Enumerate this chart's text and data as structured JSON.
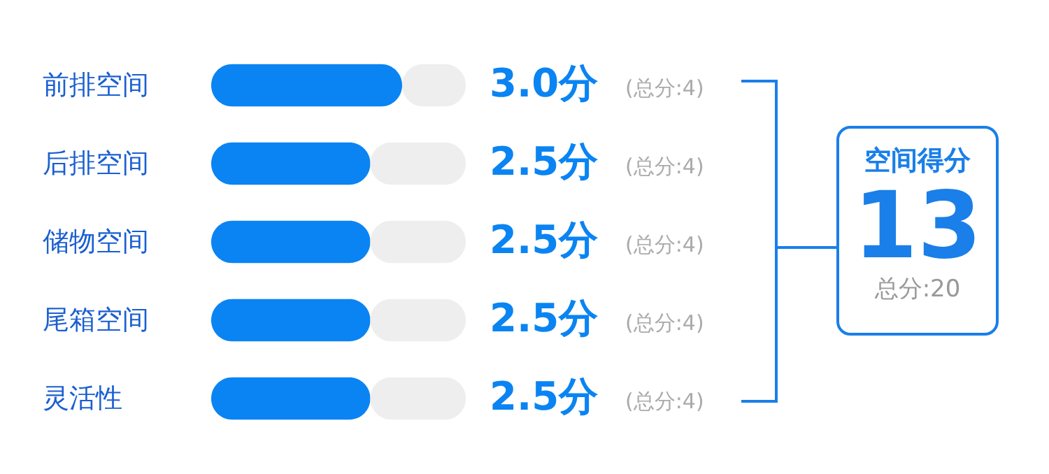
{
  "chart_data": {
    "type": "bar",
    "orientation": "horizontal",
    "categories": [
      "前排空间",
      "后排空间",
      "储物空间",
      "尾箱空间",
      "灵活性"
    ],
    "series": [
      {
        "color": "#0a84f2",
        "values": [
          3.0,
          2.5,
          2.5,
          2.5,
          2.5
        ],
        "value_labels": [
          "3.0分",
          "2.5分",
          "2.5分",
          "2.5分",
          "2.5分"
        ]
      },
      {
        "color": "#eeeeee",
        "values": [
          1.0,
          1.5,
          1.5,
          1.5,
          1.5
        ]
      }
    ],
    "stacked": true,
    "xlim": [
      0,
      4
    ],
    "tick_labels": "y",
    "annotations": [
      "(总分:4)",
      "(总分:4)",
      "(总分:4)",
      "(总分:4)",
      "(总分:4)",
      "空间得分",
      "13",
      "总分:20"
    ]
  }
}
